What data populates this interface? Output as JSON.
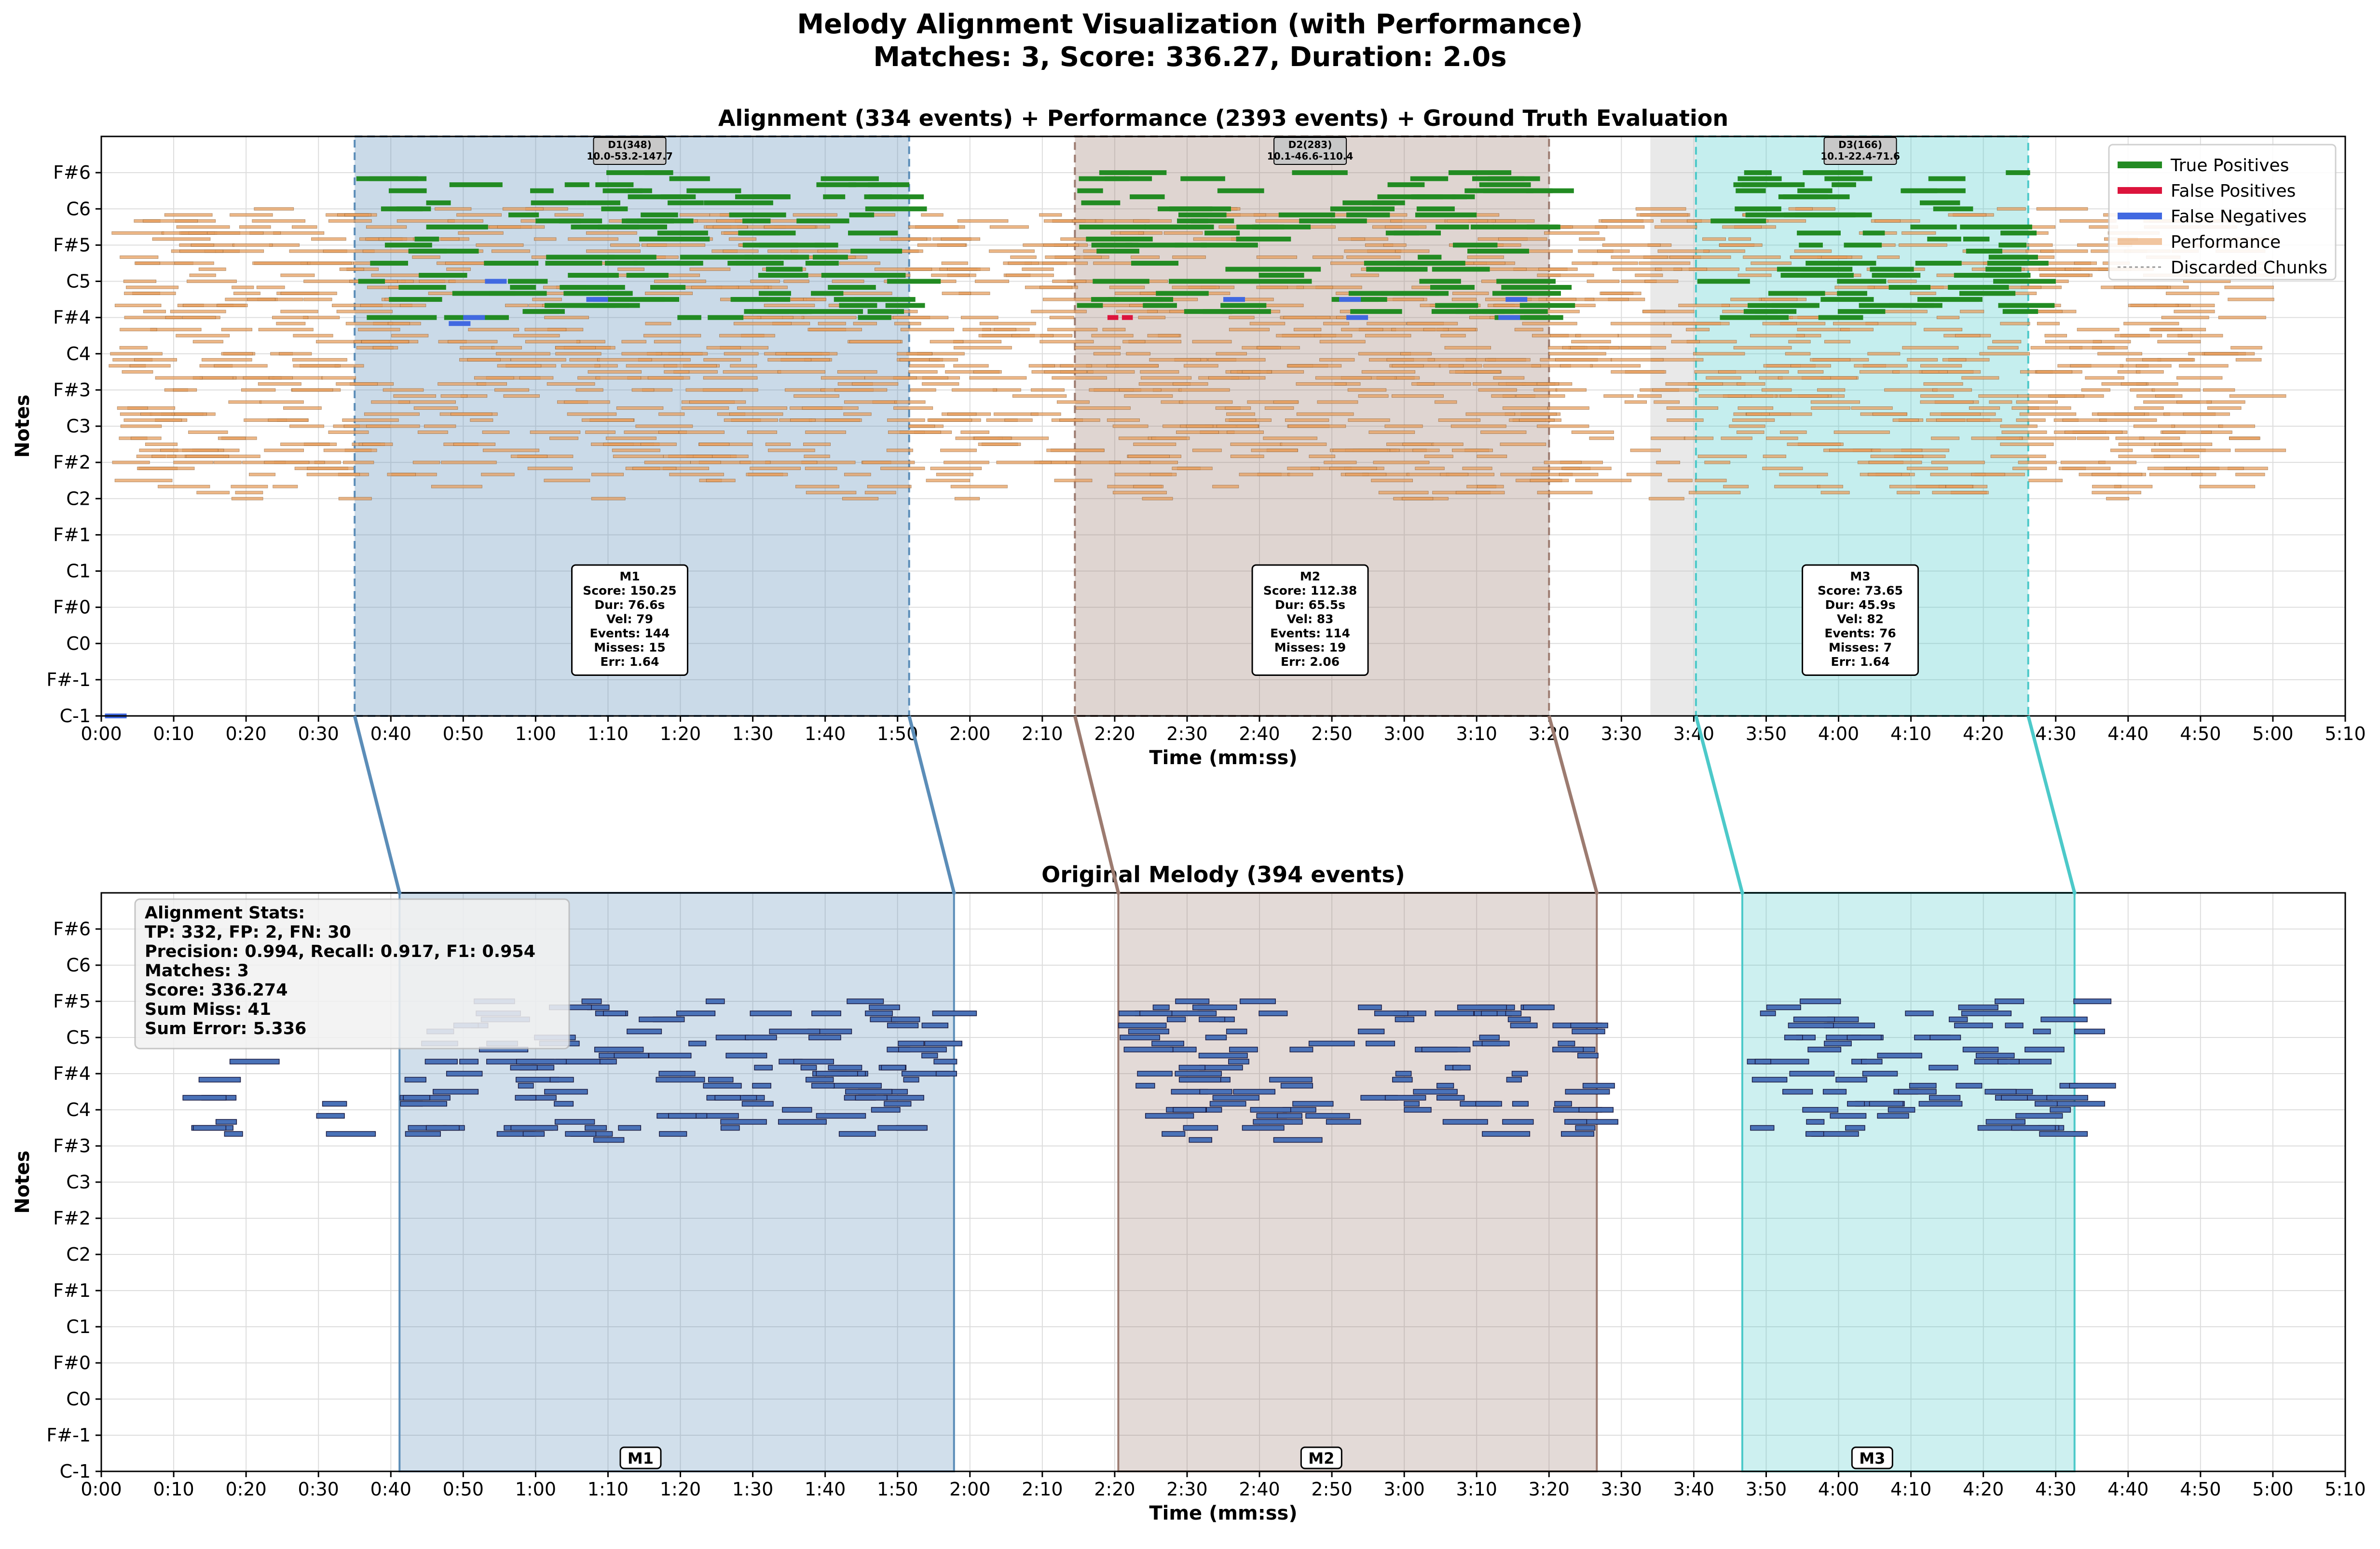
{
  "figure": {
    "title_line1": "Melody Alignment Visualization (with Performance)",
    "title_line2": "Matches: 3, Score: 336.27, Duration: 2.0s"
  },
  "colors": {
    "true_positive": "#228B22",
    "false_positive": "#DC143C",
    "false_negative": "#4169E1",
    "performance": "#E8A060",
    "performance_edge": "#8B5A2B",
    "melody_note": "#4A72B8",
    "melody_edge": "#1a1a40",
    "m1": "#5B8DB8",
    "m2": "#9C7B70",
    "m3": "#4CC9C9",
    "discard": "#C8C8C8",
    "grid": "#DDDDDD"
  },
  "chart_data": [
    {
      "type": "scatter",
      "title": "Alignment (334 events) + Performance (2393 events) + Ground Truth Evaluation",
      "xlabel": "Time (mm:ss)",
      "ylabel": "Notes",
      "xlim": [
        0,
        310
      ],
      "xticks": [
        "0:00",
        "0:10",
        "0:20",
        "0:30",
        "0:40",
        "0:50",
        "1:00",
        "1:10",
        "1:20",
        "1:30",
        "1:40",
        "1:50",
        "2:00",
        "2:10",
        "2:20",
        "2:30",
        "2:40",
        "2:50",
        "3:00",
        "3:10",
        "3:20",
        "3:30",
        "3:40",
        "3:50",
        "4:00",
        "4:10",
        "4:20",
        "4:30",
        "4:40",
        "4:50",
        "5:00",
        "5:10"
      ],
      "yticks": [
        "C-1",
        "F#-1",
        "C0",
        "F#0",
        "C1",
        "F#1",
        "C2",
        "F#2",
        "C3",
        "F#3",
        "C4",
        "F#4",
        "C5",
        "F#5",
        "C6",
        "F#6"
      ],
      "grid": true,
      "legend_position": "top-right",
      "legend": [
        "True Positives",
        "False Positives",
        "False Negatives",
        "Performance",
        "Discarded Chunks"
      ],
      "match_regions": [
        {
          "name": "M1",
          "start": 35,
          "end": 111.6
        },
        {
          "name": "M2",
          "start": 134.5,
          "end": 200
        },
        {
          "name": "M3",
          "start": 220.3,
          "end": 266.2
        }
      ],
      "discarded_chunks": [
        {
          "start": 214,
          "end": 220.3
        }
      ],
      "chunk_labels": [
        {
          "line1": "D1(348)",
          "line2": "10.0-53.2-147.7",
          "x": 73
        },
        {
          "line1": "D2(283)",
          "line2": "10.1-46.6-110.4",
          "x": 167
        },
        {
          "line1": "D3(166)",
          "line2": "10.1-22.4-71.6",
          "x": 243
        }
      ],
      "match_boxes": [
        {
          "lines": [
            "M1",
            "Score: 150.25",
            "Dur: 76.6s",
            "Vel: 79",
            "Events: 144",
            "Misses: 15",
            "Err: 1.64"
          ],
          "x": 73
        },
        {
          "lines": [
            "M2",
            "Score: 112.38",
            "Dur: 65.5s",
            "Vel: 83",
            "Events: 114",
            "Misses: 19",
            "Err: 2.06"
          ],
          "x": 167
        },
        {
          "lines": [
            "M3",
            "Score: 73.65",
            "Dur: 45.9s",
            "Vel: 82",
            "Events: 76",
            "Misses: 7",
            "Err: 1.64"
          ],
          "x": 243
        }
      ],
      "note_bands": {
        "true_positive_pitch_range": [
          "F#4",
          "F#6"
        ],
        "performance_pitch_range": [
          "C1",
          "F#6"
        ],
        "false_negatives": [
          {
            "t": 0.5,
            "pitch": "C-1"
          },
          {
            "t": 53,
            "pitch": "C5"
          },
          {
            "t": 50,
            "pitch": "F#4"
          },
          {
            "t": 48,
            "pitch": "F4"
          },
          {
            "t": 67,
            "pitch": "A4"
          },
          {
            "t": 155,
            "pitch": "A4"
          },
          {
            "t": 171,
            "pitch": "A4"
          },
          {
            "t": 172,
            "pitch": "F#4"
          },
          {
            "t": 194,
            "pitch": "A4"
          },
          {
            "t": 193,
            "pitch": "F#4"
          }
        ],
        "false_positives": [
          {
            "t": 139,
            "pitch": "F#4"
          },
          {
            "t": 141,
            "pitch": "F#4"
          }
        ]
      }
    },
    {
      "type": "scatter",
      "title": "Original Melody (394 events)",
      "xlabel": "Time (mm:ss)",
      "ylabel": "Notes",
      "xlim": [
        0,
        310
      ],
      "xticks": [
        "0:00",
        "0:10",
        "0:20",
        "0:30",
        "0:40",
        "0:50",
        "1:00",
        "1:10",
        "1:20",
        "1:30",
        "1:40",
        "1:50",
        "2:00",
        "2:10",
        "2:20",
        "2:30",
        "2:40",
        "2:50",
        "3:00",
        "3:10",
        "3:20",
        "3:30",
        "3:40",
        "3:50",
        "4:00",
        "4:10",
        "4:20",
        "4:30",
        "4:40",
        "4:50",
        "5:00",
        "5:10"
      ],
      "yticks": [
        "C-1",
        "F#-1",
        "C0",
        "F#0",
        "C1",
        "F#1",
        "C2",
        "F#2",
        "C3",
        "F#3",
        "C4",
        "F#4",
        "C5",
        "F#5",
        "C6",
        "F#6"
      ],
      "grid": true,
      "match_regions": [
        {
          "name": "M1",
          "start": 41.2,
          "end": 117.8
        },
        {
          "name": "M2",
          "start": 140.5,
          "end": 206.6
        },
        {
          "name": "M3",
          "start": 226.7,
          "end": 272.6
        }
      ],
      "stats_box": [
        "Alignment Stats:",
        "TP: 332, FP: 2, FN: 30",
        "Precision: 0.994, Recall: 0.917, F1: 0.954",
        "Matches: 3",
        "Score: 336.274",
        "Sum Miss: 41",
        "Sum Error: 5.336"
      ],
      "melody_pitch_range": [
        "G3",
        "F#5"
      ]
    }
  ]
}
